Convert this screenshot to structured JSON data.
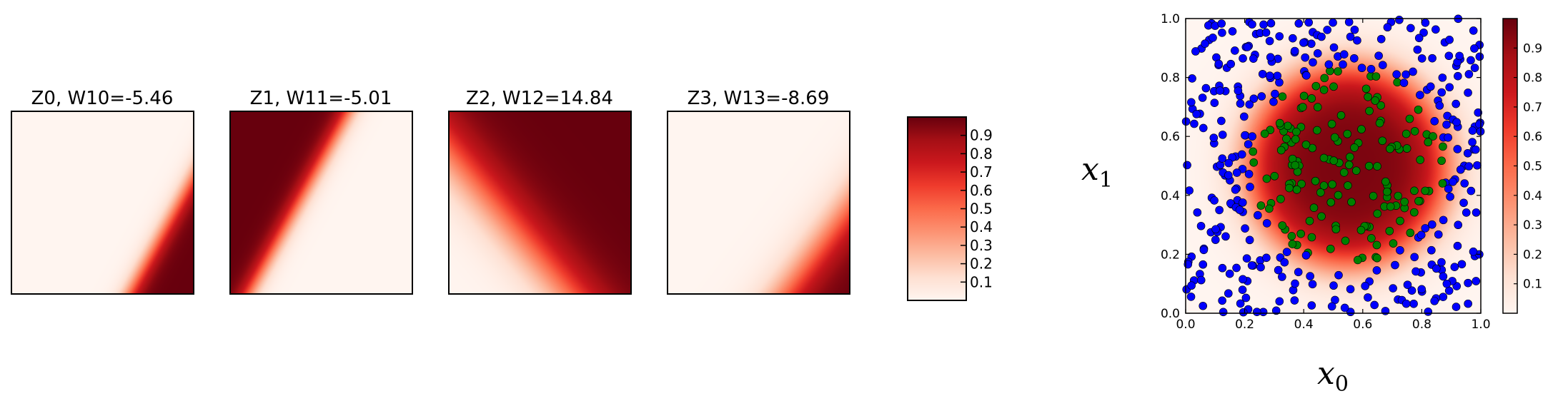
{
  "chart_data": [
    {
      "type": "heatmap",
      "title": "Z0, W10=-5.46",
      "colormap": "Reds",
      "field": {
        "a": 1.0,
        "b": 0.55,
        "c": -1.2,
        "k": 28
      },
      "axes": "off"
    },
    {
      "type": "heatmap",
      "title": "Z1, W11=-5.01",
      "colormap": "Reds",
      "field": {
        "a": -1.0,
        "b": -0.55,
        "c": 0.65,
        "k": 28
      },
      "axes": "off"
    },
    {
      "type": "heatmap",
      "title": "Z2, W12=14.84",
      "colormap": "Reds",
      "field": {
        "a": 1.0,
        "b": -0.85,
        "c": 0.18,
        "k": 9
      },
      "axes": "off"
    },
    {
      "type": "heatmap",
      "title": "Z3, W13=-8.69",
      "colormap": "Reds",
      "field": {
        "a": 1.0,
        "b": 0.75,
        "c": -1.4,
        "k": 12
      },
      "axes": "off"
    },
    {
      "type": "colorbar",
      "colormap": "Reds",
      "range": [
        0,
        1
      ],
      "ticks": [
        "0.9",
        "0.8",
        "0.7",
        "0.6",
        "0.5",
        "0.4",
        "0.3",
        "0.2",
        "0.1"
      ]
    },
    {
      "type": "scatter",
      "xlabel": "x",
      "xlabel_sub": "0",
      "ylabel": "x",
      "ylabel_sub": "1",
      "xlim": [
        0,
        1
      ],
      "ylim": [
        0,
        1
      ],
      "xticks": [
        "0.0",
        "0.2",
        "0.4",
        "0.6",
        "0.8",
        "1.0"
      ],
      "yticks": [
        "0.0",
        "0.2",
        "0.4",
        "0.6",
        "0.8",
        "1.0"
      ],
      "background": {
        "type": "heatmap",
        "colormap": "Reds",
        "center": [
          0.55,
          0.5
        ],
        "radius": 0.33,
        "sharpness": 22
      },
      "series": [
        {
          "color": "#0000ff",
          "class": "outside-circle",
          "n_points": 330
        },
        {
          "color": "#008000",
          "class": "inside-circle",
          "n_points": 150
        }
      ],
      "colorbar": {
        "range": [
          0,
          1
        ],
        "ticks": [
          "0.9",
          "0.8",
          "0.7",
          "0.6",
          "0.5",
          "0.4",
          "0.3",
          "0.2",
          "0.1"
        ]
      }
    }
  ]
}
